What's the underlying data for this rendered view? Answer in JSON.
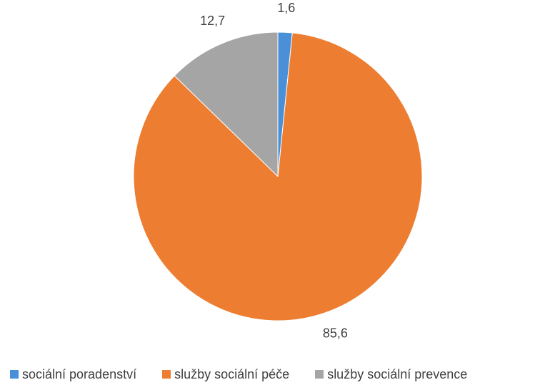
{
  "chart_data": {
    "type": "pie",
    "categories": [
      "sociální poradenství",
      "služby sociální péče",
      "služby sociální prevence"
    ],
    "values": [
      1.6,
      85.6,
      12.7
    ],
    "data_labels": [
      "1,6",
      "85,6",
      "12,7"
    ],
    "colors": [
      "#4a90d9",
      "#ed7d31",
      "#a5a5a5"
    ],
    "start_angle_deg": 0,
    "direction": "clockwise",
    "legend_placement": "bottom"
  }
}
